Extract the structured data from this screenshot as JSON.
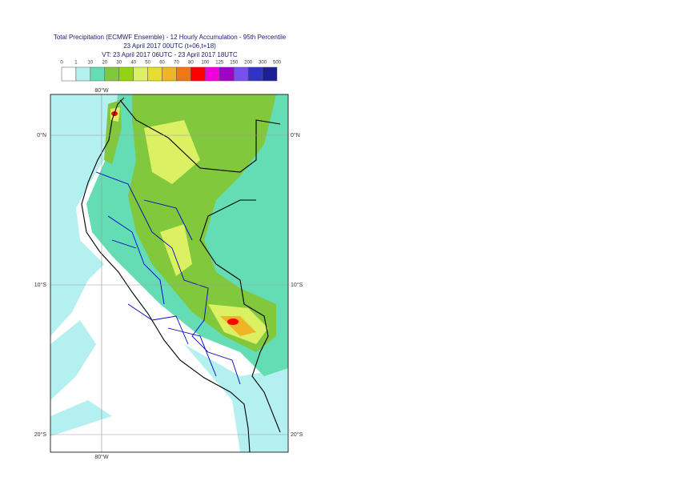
{
  "header": {
    "title": "Total Precipitation (ECMWF Ensemble) - 12 Hourly Accumulation - 95th Percentile",
    "line2": "23 April 2017 00UTC (t+06,t+18)",
    "line3": "VT: 23 April 2017 06UTC - 23 April 2017 18UTC"
  },
  "legend": {
    "labels": [
      0,
      1,
      10,
      20,
      30,
      40,
      50,
      60,
      70,
      80,
      100,
      125,
      150,
      200,
      300,
      500
    ],
    "colors": [
      "#ffffff",
      "#b4f0f0",
      "#64dcb4",
      "#82c83c",
      "#96d214",
      "#dcf064",
      "#e6dc32",
      "#f0b428",
      "#f07814",
      "#ff0000",
      "#f000dc",
      "#a000c8",
      "#7850f0",
      "#3232c8",
      "#1e1e96",
      "#000050"
    ]
  },
  "map": {
    "lon_labels": [
      "80°W"
    ],
    "lat_labels": [
      "0°N",
      "10°S",
      "20°S"
    ]
  }
}
